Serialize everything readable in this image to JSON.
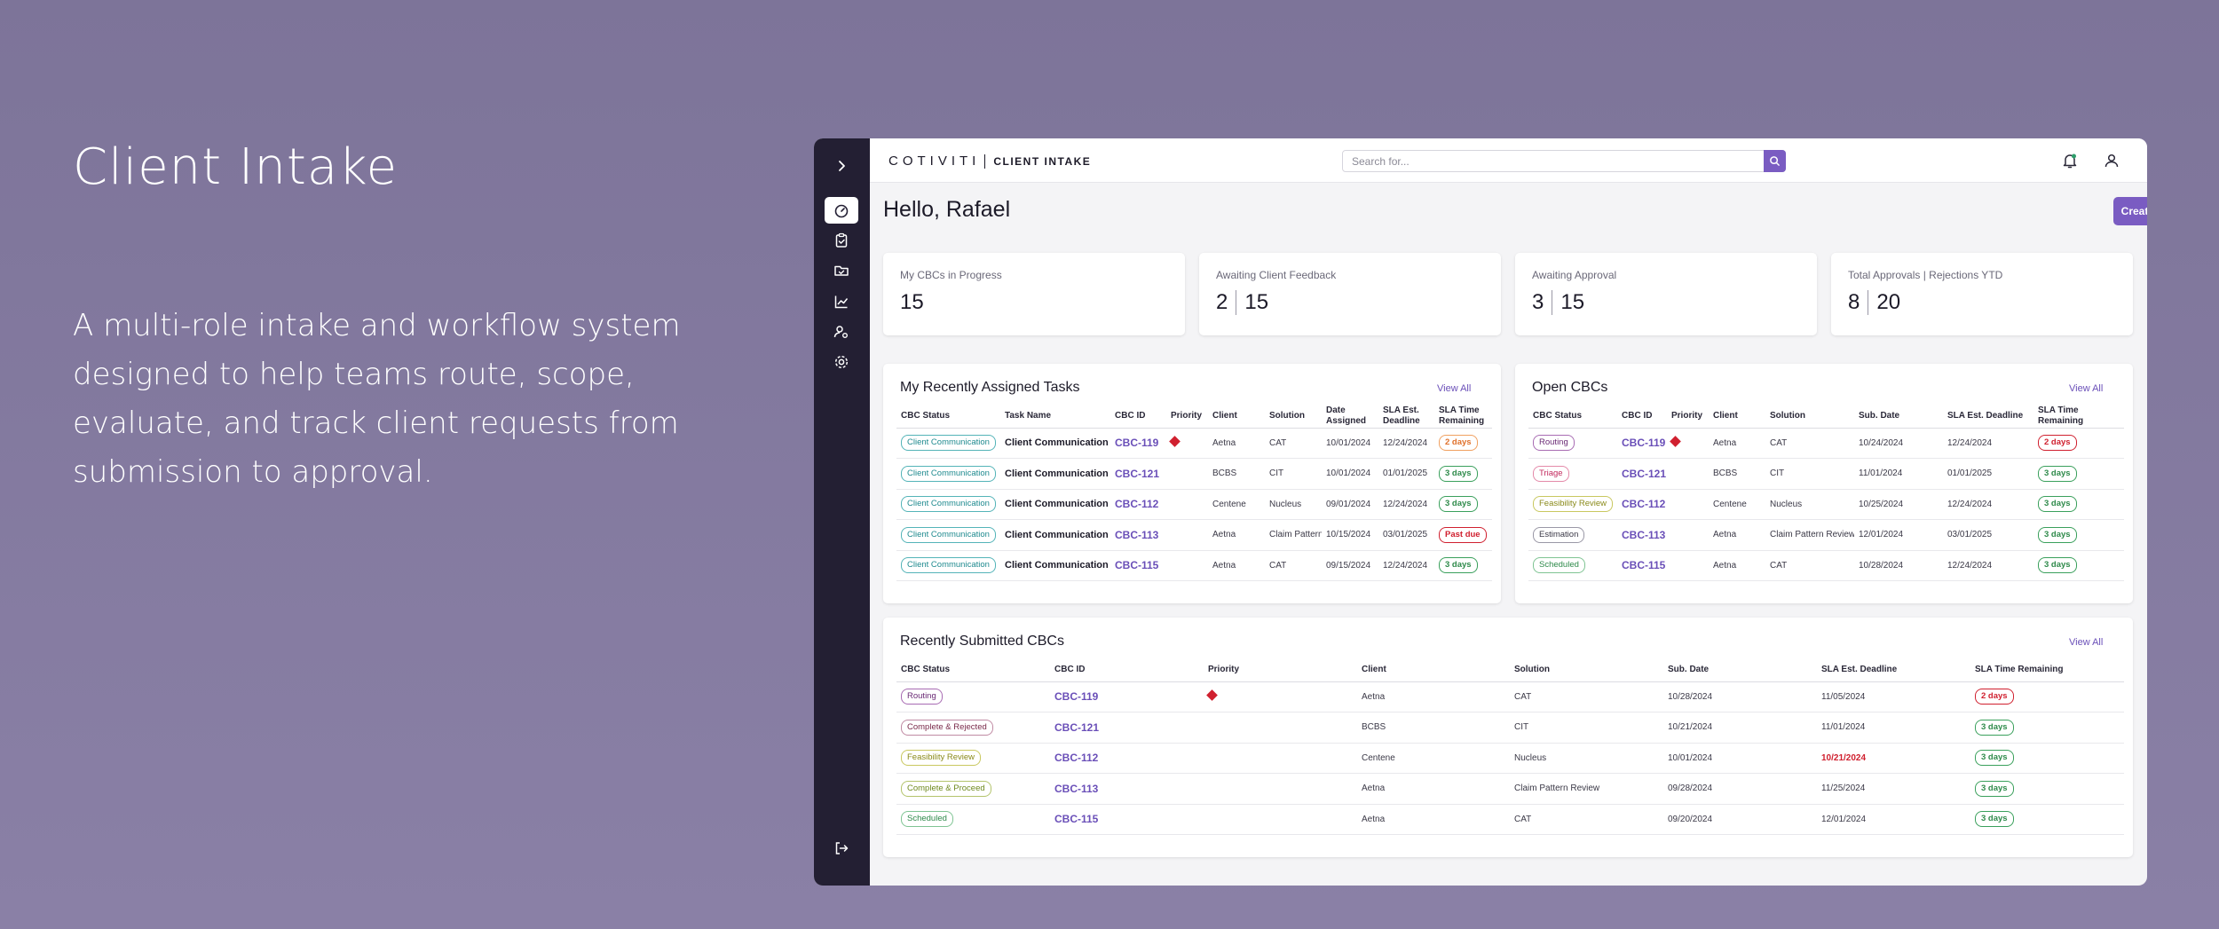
{
  "hero": {
    "title": "Client Intake",
    "description": "A multi-role intake and workflow system designed to help teams route, scope, evaluate, and track client requests from submission to approval."
  },
  "app": {
    "logo_brand": "COTIVITI",
    "logo_sub": "CLIENT INTAKE",
    "search_placeholder": "Search for...",
    "greeting": "Hello, Rafael",
    "create_button": "Create CBC",
    "sidebar_icons": [
      "chevron-right-icon",
      "dashboard-gauge-icon",
      "clipboard-check-icon",
      "folder-check-icon",
      "line-chart-icon",
      "user-settings-icon",
      "gear-icon",
      "logout-icon"
    ]
  },
  "stats": [
    {
      "label": "My CBCs in Progress",
      "values": [
        "15"
      ]
    },
    {
      "label": "Awaiting Client Feedback",
      "values": [
        "2",
        "15"
      ]
    },
    {
      "label": "Awaiting Approval",
      "values": [
        "3",
        "15"
      ]
    },
    {
      "label": "Total Approvals | Rejections YTD",
      "values": [
        "8",
        "20"
      ]
    }
  ],
  "colors": {
    "accent": "#7a5cc2",
    "sidebar_bg": "#231f33",
    "priority_red": "#d0202f"
  },
  "assigned": {
    "title": "My Recently Assigned Tasks",
    "view_all": "View All",
    "headers": [
      "CBC Status",
      "Task Name",
      "CBC ID",
      "Priority",
      "Client",
      "Solution",
      "Date Assigned",
      "SLA Est. Deadline",
      "SLA Time Remaining"
    ],
    "rows": [
      {
        "status": "Client Communication",
        "task": "Client Communication",
        "id": "CBC-119",
        "priority": true,
        "client": "Aetna",
        "solution": "CAT",
        "date": "10/01/2024",
        "deadline": "12/24/2024",
        "sla": "2 days",
        "sla_tone": "warn"
      },
      {
        "status": "Client Communication",
        "task": "Client Communication",
        "id": "CBC-121",
        "priority": false,
        "client": "BCBS",
        "solution": "CIT",
        "date": "10/01/2024",
        "deadline": "01/01/2025",
        "sla": "3 days",
        "sla_tone": "ok"
      },
      {
        "status": "Client Communication",
        "task": "Client Communication",
        "id": "CBC-112",
        "priority": false,
        "client": "Centene",
        "solution": "Nucleus",
        "date": "09/01/2024",
        "deadline": "12/24/2024",
        "sla": "3 days",
        "sla_tone": "ok"
      },
      {
        "status": "Client Communication",
        "task": "Client Communication",
        "id": "CBC-113",
        "priority": false,
        "client": "Aetna",
        "solution": "Claim Pattern",
        "date": "10/15/2024",
        "deadline": "03/01/2025",
        "sla": "Past due",
        "sla_tone": "bad"
      },
      {
        "status": "Client Communication",
        "task": "Client Communication",
        "id": "CBC-115",
        "priority": false,
        "client": "Aetna",
        "solution": "CAT",
        "date": "09/15/2024",
        "deadline": "12/24/2024",
        "sla": "3 days",
        "sla_tone": "ok"
      }
    ]
  },
  "open": {
    "title": "Open CBCs",
    "view_all": "View All",
    "headers": [
      "CBC Status",
      "CBC ID",
      "Priority",
      "Client",
      "Solution",
      "Sub. Date",
      "SLA Est. Deadline",
      "SLA Time Remaining"
    ],
    "rows": [
      {
        "status": "Routing",
        "status_tone": "routing",
        "id": "CBC-119",
        "priority": true,
        "client": "Aetna",
        "solution": "CAT",
        "sub_date": "10/24/2024",
        "deadline": "12/24/2024",
        "sla": "2 days",
        "sla_tone": "bad"
      },
      {
        "status": "Triage",
        "status_tone": "triage",
        "id": "CBC-121",
        "priority": false,
        "client": "BCBS",
        "solution": "CIT",
        "sub_date": "11/01/2024",
        "deadline": "01/01/2025",
        "sla": "3 days",
        "sla_tone": "ok"
      },
      {
        "status": "Feasibility Review",
        "status_tone": "feasibility",
        "id": "CBC-112",
        "priority": false,
        "client": "Centene",
        "solution": "Nucleus",
        "sub_date": "10/25/2024",
        "deadline": "12/24/2024",
        "sla": "3 days",
        "sla_tone": "ok"
      },
      {
        "status": "Estimation",
        "status_tone": "estimation",
        "id": "CBC-113",
        "priority": false,
        "client": "Aetna",
        "solution": "Claim Pattern Review",
        "sub_date": "12/01/2024",
        "deadline": "03/01/2025",
        "sla": "3 days",
        "sla_tone": "ok"
      },
      {
        "status": "Scheduled",
        "status_tone": "scheduled",
        "id": "CBC-115",
        "priority": false,
        "client": "Aetna",
        "solution": "CAT",
        "sub_date": "10/28/2024",
        "deadline": "12/24/2024",
        "sla": "3 days",
        "sla_tone": "ok"
      }
    ]
  },
  "submitted": {
    "title": "Recently Submitted CBCs",
    "view_all": "View All",
    "headers": [
      "CBC Status",
      "CBC ID",
      "Priority",
      "Client",
      "Solution",
      "Sub. Date",
      "SLA Est. Deadline",
      "SLA Time Remaining"
    ],
    "rows": [
      {
        "status": "Routing",
        "status_tone": "routing",
        "id": "CBC-119",
        "priority": true,
        "client": "Aetna",
        "solution": "CAT",
        "sub_date": "10/28/2024",
        "deadline": "11/05/2024",
        "deadline_overdue": false,
        "sla": "2 days",
        "sla_tone": "bad"
      },
      {
        "status": "Complete & Rejected",
        "status_tone": "rejected",
        "id": "CBC-121",
        "priority": false,
        "client": "BCBS",
        "solution": "CIT",
        "sub_date": "10/21/2024",
        "deadline": "11/01/2024",
        "deadline_overdue": false,
        "sla": "3 days",
        "sla_tone": "ok"
      },
      {
        "status": "Feasibility Review",
        "status_tone": "feasibility",
        "id": "CBC-112",
        "priority": false,
        "client": "Centene",
        "solution": "Nucleus",
        "sub_date": "10/01/2024",
        "deadline": "10/21/2024",
        "deadline_overdue": true,
        "sla": "3 days",
        "sla_tone": "ok"
      },
      {
        "status": "Complete & Proceed",
        "status_tone": "proceed",
        "id": "CBC-113",
        "priority": false,
        "client": "Aetna",
        "solution": "Claim Pattern Review",
        "sub_date": "09/28/2024",
        "deadline": "11/25/2024",
        "deadline_overdue": false,
        "sla": "3 days",
        "sla_tone": "ok"
      },
      {
        "status": "Scheduled",
        "status_tone": "scheduled",
        "id": "CBC-115",
        "priority": false,
        "client": "Aetna",
        "solution": "CAT",
        "sub_date": "09/20/2024",
        "deadline": "12/01/2024",
        "deadline_overdue": false,
        "sla": "3 days",
        "sla_tone": "ok"
      }
    ]
  }
}
